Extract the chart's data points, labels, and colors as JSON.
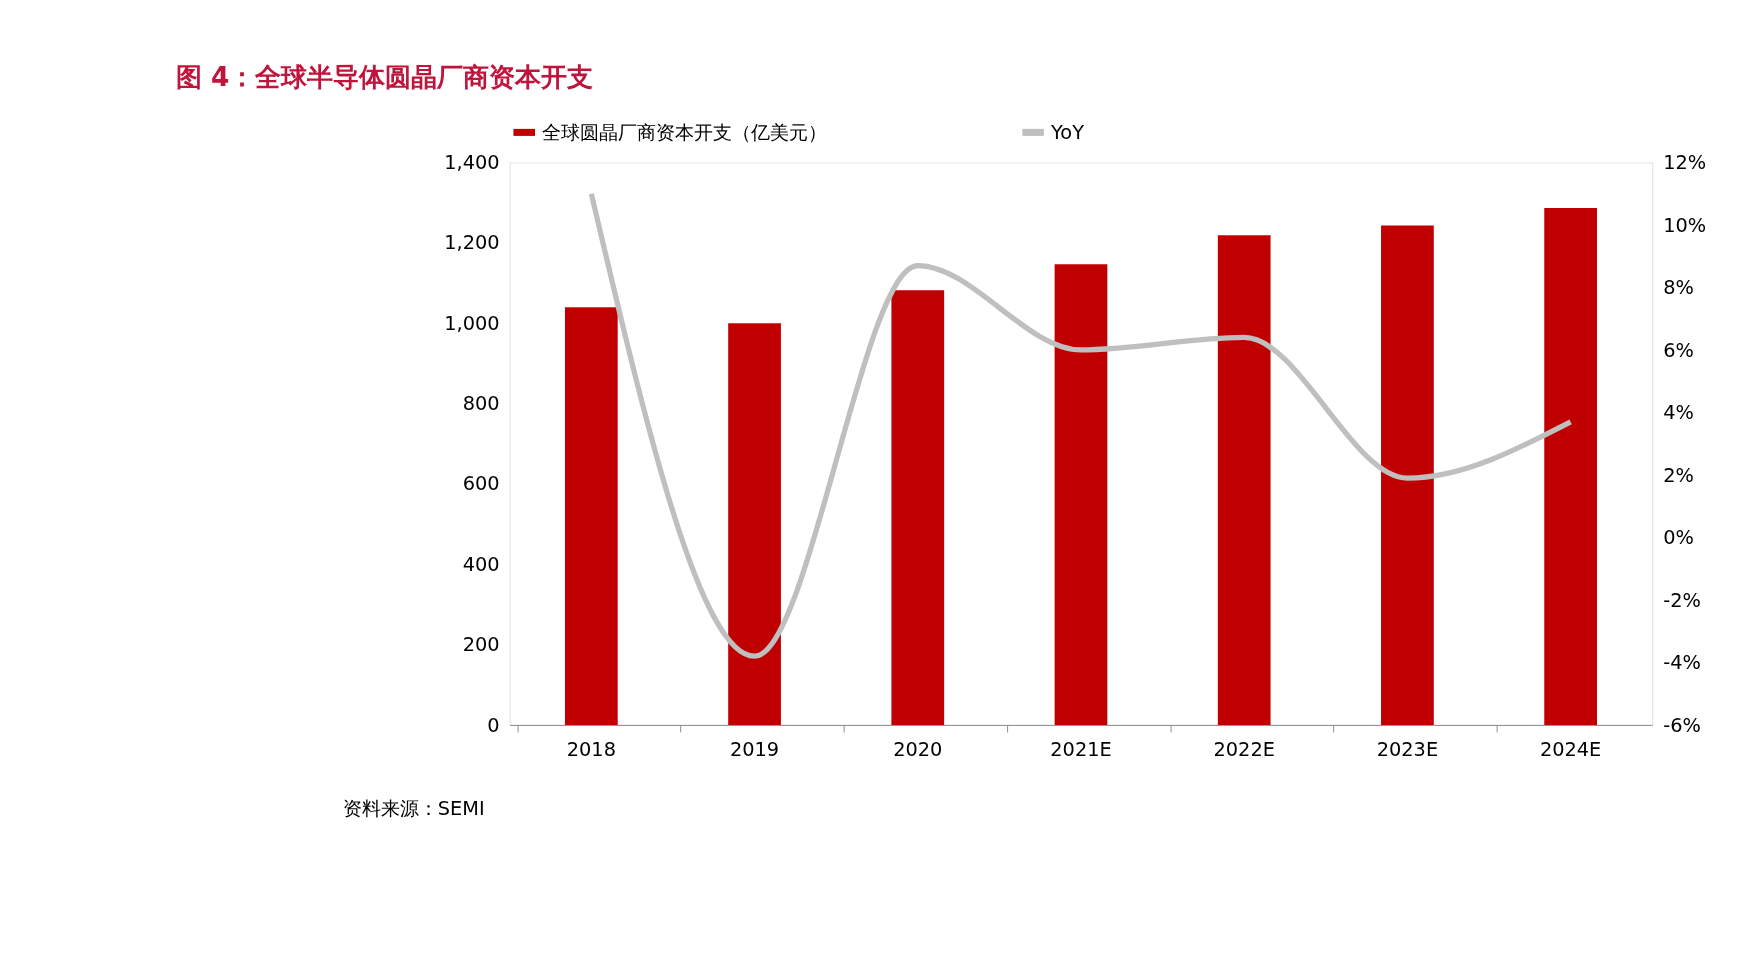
{
  "chart_data": {
    "type": "bar",
    "title": "图 4：全球半导体圆晶厂商资本开支",
    "categories": [
      "2018",
      "2019",
      "2020",
      "2021E",
      "2022E",
      "2023E",
      "2024E"
    ],
    "series": [
      {
        "name": "全球圆晶厂商资本开支（亿美元）",
        "color": "#c00000",
        "values": [
          1040,
          1000,
          1082,
          1147,
          1219,
          1243,
          1287
        ]
      },
      {
        "name": "YoY",
        "type": "line",
        "axis": "y2",
        "color": "#bfbfbf",
        "values": [
          11.0,
          -3.8,
          8.7,
          6.0,
          6.4,
          1.9,
          3.7
        ]
      }
    ],
    "ylim": [
      0,
      1400
    ],
    "yticks": [
      {
        "value": 0,
        "label": "0"
      },
      {
        "value": 200,
        "label": "200"
      },
      {
        "value": 400,
        "label": "400"
      },
      {
        "value": 600,
        "label": "600"
      },
      {
        "value": 800,
        "label": "800"
      },
      {
        "value": 1000,
        "label": "1,000"
      },
      {
        "value": 1200,
        "label": "1,200"
      },
      {
        "value": 1400,
        "label": "1,400"
      }
    ],
    "y2lim": [
      -6,
      12
    ],
    "y2ticks": [
      {
        "value": -6,
        "label": "-6%"
      },
      {
        "value": -4,
        "label": "-4%"
      },
      {
        "value": -2,
        "label": "-2%"
      },
      {
        "value": 0,
        "label": "0%"
      },
      {
        "value": 2,
        "label": "2%"
      },
      {
        "value": 4,
        "label": "4%"
      },
      {
        "value": 6,
        "label": "6%"
      },
      {
        "value": 8,
        "label": "8%"
      },
      {
        "value": 10,
        "label": "10%"
      },
      {
        "value": 12,
        "label": "12%"
      }
    ],
    "legend": "top",
    "grid": false,
    "marker": "none",
    "line_style": "solid",
    "annotations": [
      "资料来源：SEMI"
    ]
  }
}
